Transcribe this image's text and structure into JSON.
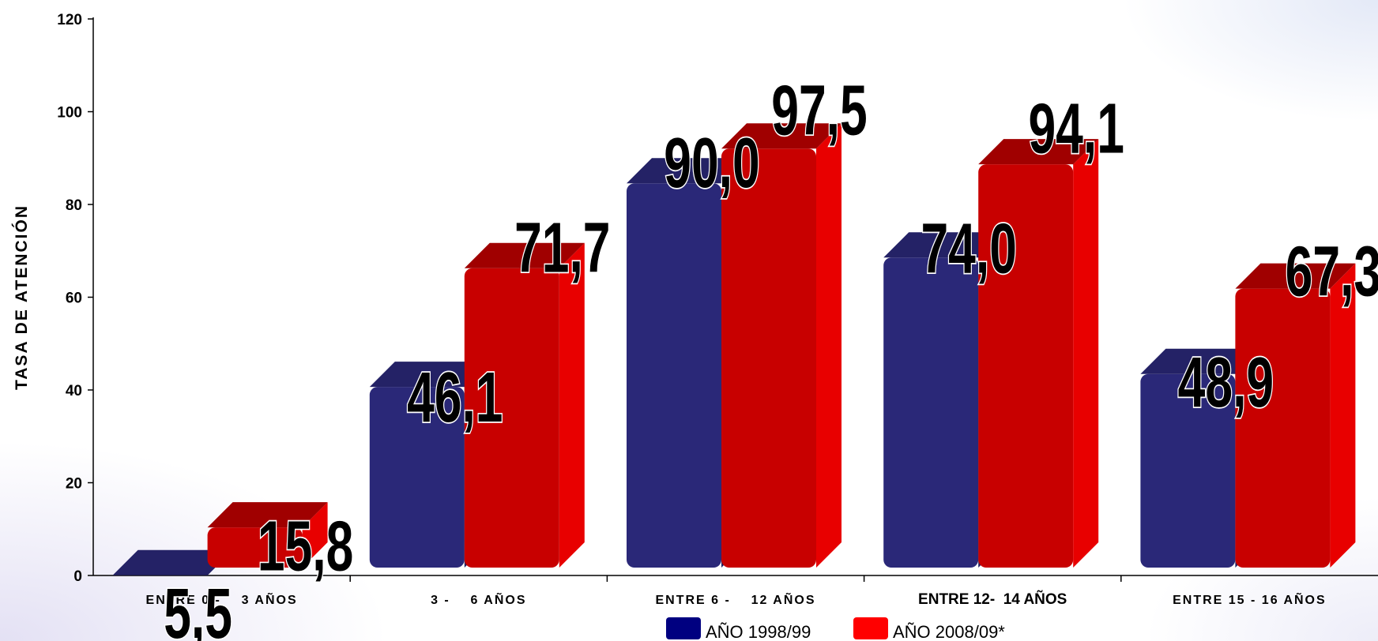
{
  "chart_data": {
    "type": "bar",
    "ylabel": "TASA DE ATENCIÓN",
    "xlabel": "",
    "title": "",
    "ylim": [
      0,
      120
    ],
    "yticks": [
      "0",
      "20",
      "40",
      "60",
      "80",
      "100",
      "120"
    ],
    "categories": [
      "ENTRE 0 -    3 AÑOS",
      "3 -    6 AÑOS",
      "ENTRE 6 -    12 AÑOS",
      "ENTRE 12-  14 AÑOS",
      "ENTRE 15 - 16 AÑOS"
    ],
    "series": [
      {
        "name": "AÑO 1998/99",
        "color": "#2a2878",
        "values": [
          5.5,
          46.1,
          90.0,
          74.0,
          48.9
        ],
        "labels": [
          "5,5",
          "46,1",
          "90,0",
          "74,0",
          "48,9"
        ]
      },
      {
        "name": "AÑO 2008/09*",
        "color": "#d80000",
        "values": [
          15.8,
          71.7,
          97.5,
          94.1,
          67.3
        ],
        "labels": [
          "15,8",
          "71,7",
          "97,5",
          "94,1",
          "67,3"
        ]
      }
    ],
    "legend_position": "bottom-center",
    "grid": false,
    "style": "3d-bar"
  }
}
